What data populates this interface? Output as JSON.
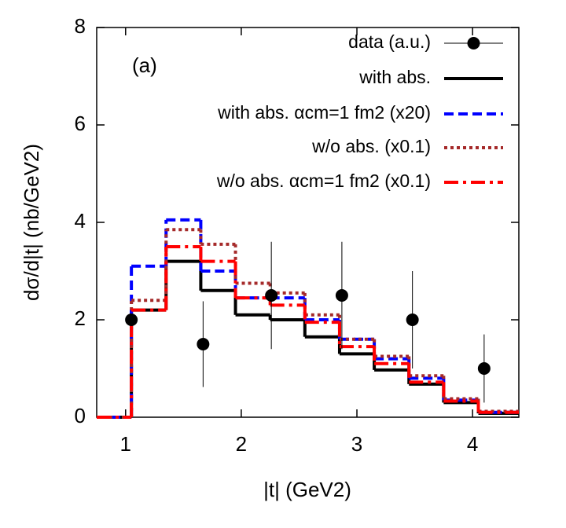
{
  "chart_data": {
    "type": "histogram",
    "xlabel": "|t| (GeV2)",
    "ylabel": "dσ/d|t| (nb/GeV2)",
    "annotation": "(a)",
    "xlim": [
      0.75,
      4.4
    ],
    "ylim": [
      0,
      8
    ],
    "xticks": [
      1,
      2,
      3,
      4
    ],
    "yticks": [
      0,
      2,
      4,
      6,
      8
    ],
    "bins": [
      0.75,
      1.05,
      1.35,
      1.65,
      1.95,
      2.25,
      2.55,
      2.85,
      3.15,
      3.45,
      3.75,
      4.05,
      4.4
    ],
    "points": {
      "name": "data (a.u.)",
      "color": "#000000",
      "x": [
        1.05,
        1.67,
        2.26,
        2.87,
        3.48,
        4.1
      ],
      "values": [
        2,
        1.5,
        2.5,
        2.5,
        2,
        1
      ],
      "errors": [
        0.1,
        0.88,
        1.1,
        1.1,
        1.0,
        0.7
      ]
    },
    "series": [
      {
        "name": "with abs.",
        "color": "#000000",
        "style": "solid",
        "values": [
          0,
          2.2,
          3.2,
          2.6,
          2.1,
          2.0,
          1.65,
          1.3,
          0.97,
          0.68,
          0.3,
          0.08
        ]
      },
      {
        "name": "with abs. αcm=1 fm2 (x20)",
        "color": "#0000ff",
        "style": "dashed",
        "values": [
          0,
          3.1,
          4.05,
          3.0,
          2.45,
          2.45,
          2.0,
          1.6,
          1.2,
          0.8,
          0.35,
          0.1
        ]
      },
      {
        "name": "w/o abs. (x0.1)",
        "color": "#a52a2a",
        "style": "dotted",
        "values": [
          0,
          2.4,
          3.85,
          3.55,
          2.75,
          2.55,
          2.1,
          1.6,
          1.25,
          0.85,
          0.38,
          0.12
        ]
      },
      {
        "name": "w/o abs. αcm=1 fm2 (x0.1)",
        "color": "#ff0000",
        "style": "dashdot",
        "values": [
          0,
          2.2,
          3.5,
          3.2,
          2.45,
          2.3,
          1.95,
          1.45,
          1.1,
          0.72,
          0.33,
          0.1
        ]
      }
    ]
  }
}
